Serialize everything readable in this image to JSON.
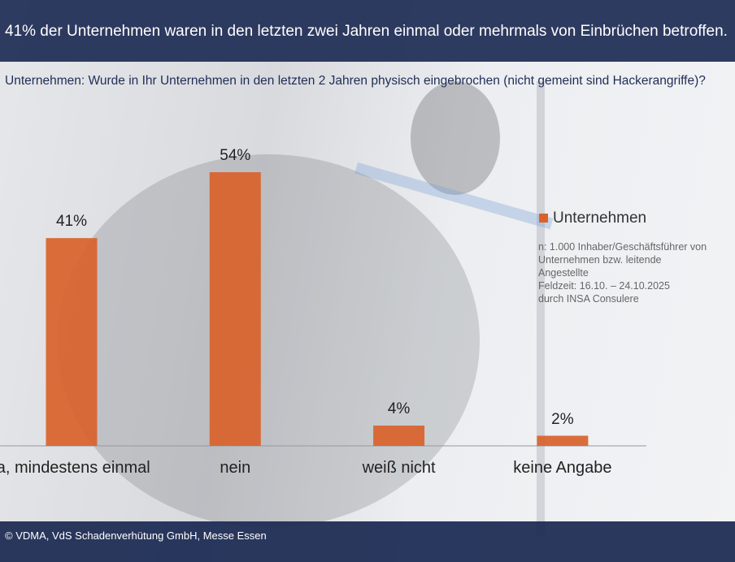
{
  "chart_data": {
    "type": "bar",
    "title": "41% der Unternehmen waren in den letzten zwei Jahren einmal oder mehrmals von Einbrüchen betroffen.",
    "subtitle": "Unternehmen: Wurde in Ihr Unternehmen in den letzten 2 Jahren physisch eingebrochen (nicht gemeint sind Hackerangriffe)?",
    "categories": [
      "ja, mindestens einmal",
      "nein",
      "weiß nicht",
      "keine Angabe"
    ],
    "series": [
      {
        "name": "Unternehmen",
        "color": "#d9622b",
        "values": [
          41,
          54,
          4,
          2
        ],
        "value_labels": [
          "41%",
          "54%",
          "4%",
          "2%"
        ]
      }
    ],
    "note": [
      "n: 1.000 Inhaber/Geschäftsführer von Unternehmen bzw. leitende Angestellte",
      "Feldzeit: 16.10. – 24.10.2025",
      "durch INSA Consulere"
    ],
    "source": "© VDMA, VdS Schadenverhütung GmbH, Messe Essen"
  }
}
